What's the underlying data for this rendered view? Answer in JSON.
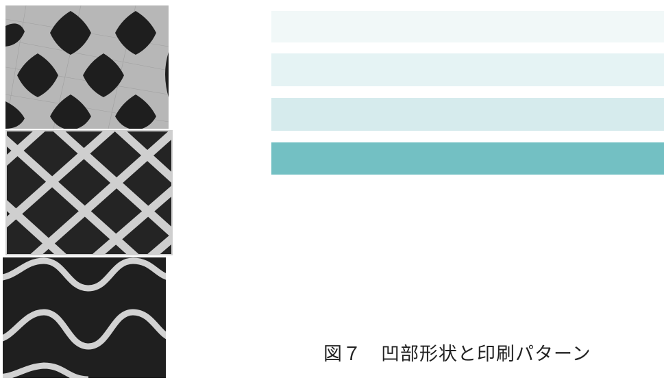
{
  "figure": {
    "caption": "図７　凹部形状と印刷パターン"
  },
  "swatches": [
    {
      "color": "#f1f8f8"
    },
    {
      "color": "#e5f3f4"
    },
    {
      "color": "#d6ebed"
    },
    {
      "color": "#73c0c3"
    }
  ],
  "micrographs": [
    {
      "pattern": "diamond-cells-light-background"
    },
    {
      "pattern": "diamond-cells-light-grid"
    },
    {
      "pattern": "sinusoidal-wave-lines"
    }
  ]
}
